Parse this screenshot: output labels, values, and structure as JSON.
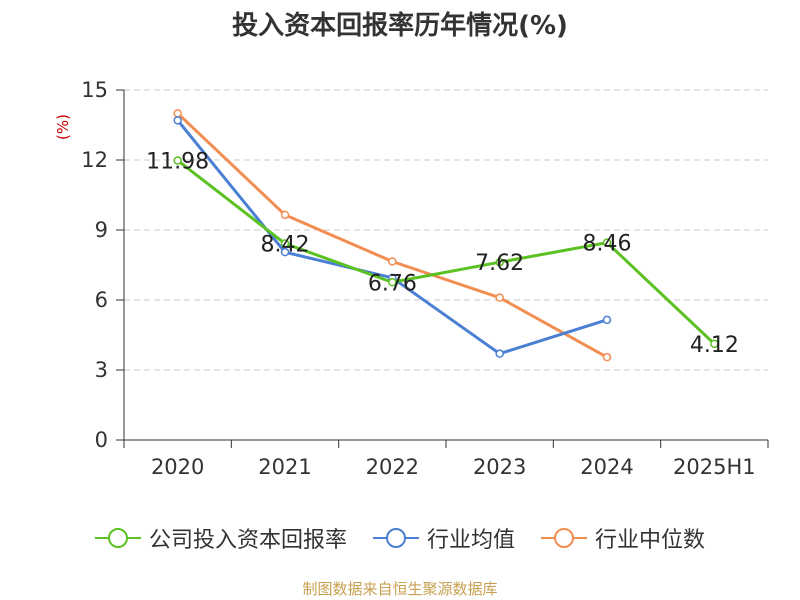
{
  "chart_data": {
    "type": "line",
    "title": "投入资本回报率历年情况(%)",
    "ylabel": "(%)",
    "xlabel": "",
    "categories": [
      "2020",
      "2021",
      "2022",
      "2023",
      "2024",
      "2025H1"
    ],
    "ylim": [
      0,
      15
    ],
    "yticks": [
      0,
      3,
      6,
      9,
      12,
      15
    ],
    "grid": true,
    "legend_position": "bottom",
    "series": [
      {
        "name": "公司投入资本回报率",
        "color": "#5cc122",
        "values": [
          11.98,
          8.42,
          6.76,
          7.62,
          8.46,
          4.12
        ],
        "labels": [
          "11.98",
          "8.42",
          "6.76",
          "7.62",
          "8.46",
          "4.12"
        ]
      },
      {
        "name": "行业均值",
        "color": "#4a7fd4",
        "values": [
          13.7,
          8.05,
          6.95,
          3.7,
          5.15,
          null
        ]
      },
      {
        "name": "行业中位数",
        "color": "#f28e52",
        "values": [
          14.0,
          9.65,
          7.65,
          6.1,
          3.55,
          null
        ]
      }
    ]
  },
  "source": "制图数据来自恒生聚源数据库"
}
